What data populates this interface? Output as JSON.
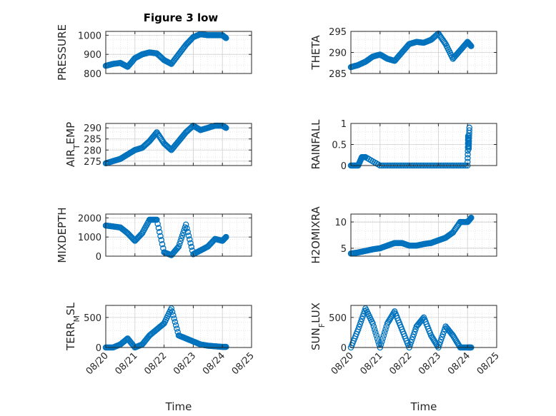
{
  "title": "Figure 3 low",
  "colors": {
    "marker": "#0072BD",
    "axis": "#262626",
    "grid": "#d9d9d9"
  },
  "xlabel": "Time",
  "x_tick_labels": [
    "08/20",
    "08/21",
    "08/22",
    "08/23",
    "08/24",
    "08/25"
  ],
  "chart_data": [
    {
      "id": "pressure",
      "type": "scatter",
      "ylabel": "PRESSURE",
      "ylim": [
        800,
        1020
      ],
      "yticks": [
        800,
        900,
        1000
      ],
      "ytick_labels": [
        "800",
        "900",
        "1000"
      ],
      "xlim": [
        "08/20",
        "08/25"
      ],
      "grid": true,
      "x": [
        "08/20",
        "08/20 06:00",
        "08/20 12:00",
        "08/20 18:00",
        "08/21",
        "08/21 06:00",
        "08/21 12:00",
        "08/21 18:00",
        "08/22",
        "08/22 06:00",
        "08/22 12:00",
        "08/22 18:00",
        "08/23",
        "08/23 06:00",
        "08/23 12:00",
        "08/23 18:00",
        "08/24",
        "08/24 03:00"
      ],
      "y": [
        840,
        850,
        855,
        835,
        880,
        900,
        910,
        905,
        870,
        850,
        900,
        950,
        990,
        1005,
        1000,
        1000,
        1000,
        985
      ]
    },
    {
      "id": "theta",
      "type": "scatter",
      "ylabel": "THETA",
      "ylim": [
        285,
        295
      ],
      "yticks": [
        285,
        290,
        295
      ],
      "ytick_labels": [
        "285",
        "290",
        "295"
      ],
      "xlim": [
        "08/20",
        "08/25"
      ],
      "grid": true,
      "x": [
        "08/20",
        "08/20 06:00",
        "08/20 12:00",
        "08/20 18:00",
        "08/21",
        "08/21 06:00",
        "08/21 12:00",
        "08/21 18:00",
        "08/22",
        "08/22 06:00",
        "08/22 12:00",
        "08/22 18:00",
        "08/23",
        "08/23 06:00",
        "08/23 12:00",
        "08/23 18:00",
        "08/24",
        "08/24 03:00"
      ],
      "y": [
        286.5,
        287,
        287.8,
        289,
        289.5,
        288.5,
        288,
        290,
        292,
        292.5,
        292.3,
        293,
        294.5,
        292,
        288.5,
        290.5,
        292.5,
        291.5
      ]
    },
    {
      "id": "air_temp",
      "type": "scatter",
      "ylabel": "AIR_TEMP",
      "ylim": [
        273,
        292
      ],
      "yticks": [
        275,
        280,
        285,
        290
      ],
      "ytick_labels": [
        "275",
        "280",
        "285",
        "290"
      ],
      "xlim": [
        "08/20",
        "08/25"
      ],
      "grid": true,
      "x": [
        "08/20",
        "08/20 06:00",
        "08/20 12:00",
        "08/20 18:00",
        "08/21",
        "08/21 06:00",
        "08/21 12:00",
        "08/21 18:00",
        "08/22",
        "08/22 06:00",
        "08/22 12:00",
        "08/22 18:00",
        "08/23",
        "08/23 06:00",
        "08/23 12:00",
        "08/23 18:00",
        "08/24",
        "08/24 03:00"
      ],
      "y": [
        274,
        275,
        276,
        278,
        280,
        281,
        284,
        288,
        283,
        280,
        284,
        288,
        291,
        289,
        290,
        291,
        291,
        290
      ]
    },
    {
      "id": "rainfall",
      "type": "scatter",
      "ylabel": "RAINFALL",
      "ylim": [
        0,
        1
      ],
      "yticks": [
        0,
        0.5,
        1
      ],
      "ytick_labels": [
        "0",
        "0.5",
        "1"
      ],
      "xlim": [
        "08/20",
        "08/25"
      ],
      "grid": true,
      "x": [
        "08/20",
        "08/20 06:00",
        "08/20 09:00",
        "08/20 12:00",
        "08/21",
        "08/21 12:00",
        "08/22",
        "08/22 12:00",
        "08/23",
        "08/23 12:00",
        "08/24",
        "08/24 00:30",
        "08/24 01:00",
        "08/24 01:30"
      ],
      "y": [
        0,
        0,
        0.2,
        0.2,
        0,
        0,
        0,
        0,
        0,
        0,
        0,
        0.7,
        0.4,
        0.9
      ]
    },
    {
      "id": "mixdepth",
      "type": "scatter",
      "ylabel": "MIXDEPTH",
      "ylim": [
        0,
        2200
      ],
      "yticks": [
        0,
        1000,
        2000
      ],
      "ytick_labels": [
        "0",
        "1000",
        "2000"
      ],
      "xlim": [
        "08/20",
        "08/25"
      ],
      "grid": true,
      "x": [
        "08/20",
        "08/20 06:00",
        "08/20 12:00",
        "08/20 18:00",
        "08/21",
        "08/21 06:00",
        "08/21 12:00",
        "08/21 18:00",
        "08/22",
        "08/22 06:00",
        "08/22 12:00",
        "08/22 18:00",
        "08/23",
        "08/23 06:00",
        "08/23 12:00",
        "08/23 18:00",
        "08/24",
        "08/24 03:00"
      ],
      "y": [
        1600,
        1550,
        1500,
        1200,
        800,
        1200,
        1900,
        1900,
        200,
        50,
        500,
        1650,
        100,
        300,
        500,
        900,
        800,
        1000
      ]
    },
    {
      "id": "h2omixra",
      "type": "scatter",
      "ylabel": "H2OMIXRA",
      "ylim": [
        3.5,
        11.5
      ],
      "yticks": [
        5,
        10
      ],
      "ytick_labels": [
        "5",
        "10"
      ],
      "xlim": [
        "08/20",
        "08/25"
      ],
      "grid": true,
      "x": [
        "08/20",
        "08/20 06:00",
        "08/20 12:00",
        "08/20 18:00",
        "08/21",
        "08/21 06:00",
        "08/21 12:00",
        "08/21 18:00",
        "08/22",
        "08/22 06:00",
        "08/22 12:00",
        "08/22 18:00",
        "08/23",
        "08/23 06:00",
        "08/23 12:00",
        "08/23 18:00",
        "08/24",
        "08/24 03:00"
      ],
      "y": [
        4,
        4.2,
        4.5,
        4.8,
        5,
        5.5,
        6,
        6,
        5.5,
        5.5,
        5.8,
        6,
        6.5,
        7,
        8,
        10,
        10,
        10.8
      ]
    },
    {
      "id": "terr_msl",
      "type": "scatter",
      "ylabel": "TERR_MSL",
      "ylim": [
        0,
        700
      ],
      "yticks": [
        0,
        500
      ],
      "ytick_labels": [
        "0",
        "500"
      ],
      "xlim": [
        "08/20",
        "08/25"
      ],
      "grid": true,
      "x": [
        "08/20",
        "08/20 06:00",
        "08/20 12:00",
        "08/20 18:00",
        "08/21",
        "08/21 06:00",
        "08/21 12:00",
        "08/21 18:00",
        "08/22",
        "08/22 06:00",
        "08/22 12:00",
        "08/22 18:00",
        "08/23",
        "08/23 06:00",
        "08/23 12:00",
        "08/23 18:00",
        "08/24",
        "08/24 03:00"
      ],
      "y": [
        0,
        0,
        50,
        150,
        0,
        50,
        200,
        300,
        400,
        650,
        200,
        150,
        100,
        50,
        30,
        20,
        10,
        10
      ]
    },
    {
      "id": "sun_flux",
      "type": "scatter",
      "ylabel": "SUN_FLUX",
      "ylim": [
        0,
        700
      ],
      "yticks": [
        0,
        500
      ],
      "ytick_labels": [
        "0",
        "500"
      ],
      "xlim": [
        "08/20",
        "08/25"
      ],
      "grid": true,
      "x": [
        "08/20",
        "08/20 06:00",
        "08/20 12:00",
        "08/20 18:00",
        "08/21",
        "08/21 06:00",
        "08/21 12:00",
        "08/21 18:00",
        "08/22",
        "08/22 06:00",
        "08/22 12:00",
        "08/22 18:00",
        "08/23",
        "08/23 06:00",
        "08/23 12:00",
        "08/23 18:00",
        "08/24",
        "08/24 03:00"
      ],
      "y": [
        0,
        300,
        650,
        400,
        0,
        400,
        600,
        300,
        0,
        350,
        500,
        200,
        0,
        350,
        200,
        0,
        0,
        0
      ]
    }
  ],
  "ylabel_display": [
    {
      "main": "PRESSURE",
      "sub": "",
      "tail": ""
    },
    {
      "main": "THETA",
      "sub": "",
      "tail": ""
    },
    {
      "main": "AIR",
      "sub": "T",
      "tail": "EMP"
    },
    {
      "main": "RAINFALL",
      "sub": "",
      "tail": ""
    },
    {
      "main": "MIXDEPTH",
      "sub": "",
      "tail": ""
    },
    {
      "main": "H2OMIXRA",
      "sub": "",
      "tail": ""
    },
    {
      "main": "TERR",
      "sub": "M",
      "tail": "SL"
    },
    {
      "main": "SUN",
      "sub": "F",
      "tail": "LUX"
    }
  ]
}
